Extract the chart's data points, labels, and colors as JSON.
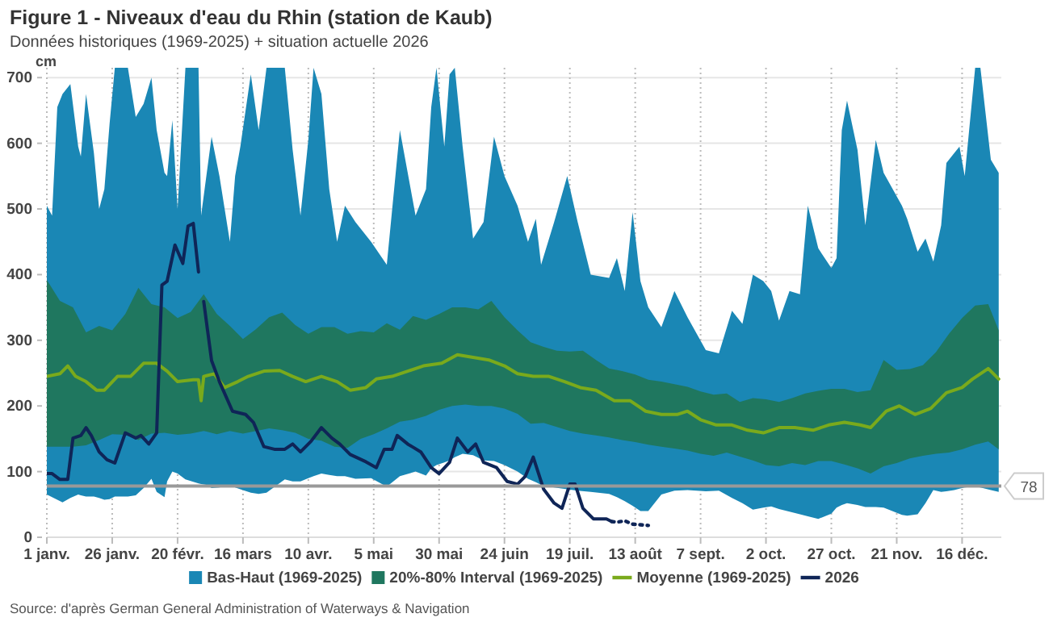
{
  "chart_data": {
    "type": "area",
    "title": "Figure 1 - Niveaux d'eau du Rhin (station de Kaub)",
    "subtitle": "Données historiques (1969-2025) + situation actuelle 2026",
    "ylabel": "cm",
    "annotations": [
      "Source: d'après German General Administration of Waterways & Navigation"
    ],
    "xlim": [
      "--01-01",
      "--12-31"
    ],
    "xticks": [
      {
        "value": "--01-01",
        "label": "1 janv."
      },
      {
        "value": "--01-26",
        "label": "26 janv."
      },
      {
        "value": "--02-20",
        "label": "20 févr."
      },
      {
        "value": "--03-16",
        "label": "16 mars"
      },
      {
        "value": "--04-10",
        "label": "10 avr."
      },
      {
        "value": "--05-05",
        "label": "5 mai"
      },
      {
        "value": "--05-30",
        "label": "30 mai"
      },
      {
        "value": "--06-24",
        "label": "24 juin"
      },
      {
        "value": "--07-19",
        "label": "19 juil."
      },
      {
        "value": "--08-13",
        "label": "13 août"
      },
      {
        "value": "--09-07",
        "label": "7 sept."
      },
      {
        "value": "--10-02",
        "label": "2 oct."
      },
      {
        "value": "--10-27",
        "label": "27 oct."
      },
      {
        "value": "--11-21",
        "label": "21 nov."
      },
      {
        "value": "--12-16",
        "label": "16 déc."
      }
    ],
    "ylim": [
      0,
      715
    ],
    "yticks": [
      0,
      100,
      200,
      300,
      400,
      500,
      600,
      700
    ],
    "grid": true,
    "legend": "bottom",
    "ref_lines": [
      {
        "axis": "y",
        "value": 78,
        "label": "78",
        "color": "#999999"
      }
    ],
    "series": [
      {
        "name": "Bas-Haut (1969-2025)",
        "color": "#1a87b5",
        "x": [
          "--01-01",
          "--01-03",
          "--01-05",
          "--01-07",
          "--01-10",
          "--01-13",
          "--01-14",
          "--01-16",
          "--01-19",
          "--01-21",
          "--01-23",
          "--01-25",
          "--01-27",
          "--02-01",
          "--02-04",
          "--02-07",
          "--02-10",
          "--02-12",
          "--02-15",
          "--02-16",
          "--02-18",
          "--02-20",
          "--02-23",
          "--02-28",
          "--02-29",
          "--03-02",
          "--03-04",
          "--03-07",
          "--03-11",
          "--03-13",
          "--03-15",
          "--03-19",
          "--03-22",
          "--03-25",
          "--04-01",
          "--04-04",
          "--04-07",
          "--04-10",
          "--04-12",
          "--04-15",
          "--04-18",
          "--04-21",
          "--04-24",
          "--04-28",
          "--05-04",
          "--05-10",
          "--05-15",
          "--05-21",
          "--05-25",
          "--05-27",
          "--05-29",
          "--06-01",
          "--06-03",
          "--06-05",
          "--06-08",
          "--06-12",
          "--06-16",
          "--06-20",
          "--06-24",
          "--06-29",
          "--07-03",
          "--07-06",
          "--07-08",
          "--07-13",
          "--07-18",
          "--07-22",
          "--07-27",
          "--08-03",
          "--08-06",
          "--08-09",
          "--08-12",
          "--08-15",
          "--08-18",
          "--08-23",
          "--08-28",
          "--09-02",
          "--09-09",
          "--09-14",
          "--09-19",
          "--09-23",
          "--09-27",
          "--10-01",
          "--10-04",
          "--10-07",
          "--10-11",
          "--10-15",
          "--10-18",
          "--10-22",
          "--10-27",
          "--10-29",
          "--10-31",
          "--11-02",
          "--11-06",
          "--11-09",
          "--11-13",
          "--11-16",
          "--11-23",
          "--11-25",
          "--11-29",
          "--12-02",
          "--12-05",
          "--12-08",
          "--12-10",
          "--12-13",
          "--12-15",
          "--12-17",
          "--12-21",
          "--12-23",
          "--12-27",
          "--12-30"
        ],
        "values": [
          null,
          null,
          null,
          null,
          null,
          null,
          null,
          null,
          null,
          null,
          null,
          null,
          null,
          null,
          null,
          null,
          null,
          null,
          null,
          null,
          null,
          null,
          null,
          null,
          null,
          null,
          null,
          null,
          null,
          null,
          null,
          null,
          null,
          null,
          null,
          null,
          null,
          null,
          null,
          null,
          null,
          null,
          null,
          null,
          null,
          null,
          null,
          null,
          null,
          null,
          null,
          null,
          null,
          null,
          null,
          null,
          null,
          null,
          null,
          null,
          null,
          null,
          null,
          null,
          null,
          null,
          null,
          null,
          null,
          null,
          null,
          null,
          null,
          null,
          null,
          null,
          null,
          null,
          null,
          null,
          null,
          null,
          null,
          null,
          null,
          null,
          null,
          null,
          null,
          null,
          null,
          null,
          null,
          null,
          null,
          null,
          null,
          null,
          null,
          null,
          null,
          null,
          null,
          null,
          null,
          null,
          null,
          null,
          null,
          null
        ],
        "upper": [
          505,
          490,
          655,
          675,
          690,
          595,
          580,
          675,
          585,
          500,
          530,
          630,
          715,
          715,
          640,
          660,
          700,
          620,
          555,
          550,
          635,
          500,
          715,
          715,
          490,
          550,
          610,
          550,
          450,
          550,
          595,
          705,
          620,
          715,
          715,
          590,
          490,
          605,
          715,
          675,
          530,
          450,
          505,
          480,
          450,
          415,
          620,
          490,
          530,
          655,
          715,
          595,
          705,
          715,
          595,
          455,
          480,
          610,
          550,
          505,
          450,
          485,
          415,
          480,
          550,
          480,
          400,
          395,
          425,
          375,
          495,
          390,
          350,
          320,
          375,
          335,
          285,
          280,
          345,
          325,
          400,
          390,
          375,
          330,
          375,
          370,
          505,
          440,
          410,
          425,
          620,
          665,
          590,
          475,
          605,
          555,
          505,
          485,
          435,
          455,
          420,
          475,
          570,
          585,
          595,
          550,
          715,
          715,
          575,
          555
        ],
        "lower": [
          65,
          61,
          57,
          53,
          60,
          65,
          64,
          62,
          62,
          60,
          57,
          58,
          62,
          62,
          64,
          75,
          89,
          69,
          61,
          85,
          100,
          97,
          88,
          82,
          81,
          80,
          75,
          76,
          80,
          76,
          73,
          68,
          66,
          68,
          88,
          85,
          85,
          90,
          93,
          97,
          95,
          93,
          93,
          89,
          90,
          77,
          93,
          100,
          94,
          105,
          110,
          114,
          117,
          122,
          127,
          125,
          117,
          116,
          110,
          100,
          89,
          84,
          80,
          76,
          73,
          71,
          69,
          66,
          61,
          55,
          48,
          40,
          40,
          65,
          71,
          72,
          70,
          71,
          60,
          52,
          42,
          45,
          47,
          43,
          39,
          35,
          32,
          28,
          36,
          45,
          49,
          52,
          49,
          46,
          46,
          45,
          34,
          33,
          35,
          52,
          72,
          69,
          70,
          72,
          74,
          76,
          77,
          76,
          72,
          69
        ]
      },
      {
        "name": "20%-80% Interval (1969-2025)",
        "color": "#1f775f",
        "x": [
          "--01-01",
          "--01-06",
          "--01-11",
          "--01-16",
          "--01-21",
          "--01-26",
          "--01-31",
          "--02-05",
          "--02-10",
          "--02-15",
          "--02-20",
          "--02-25",
          "--03-01",
          "--03-06",
          "--03-11",
          "--03-16",
          "--03-21",
          "--03-26",
          "--03-31",
          "--04-05",
          "--04-10",
          "--04-15",
          "--04-20",
          "--04-25",
          "--04-30",
          "--05-05",
          "--05-10",
          "--05-15",
          "--05-20",
          "--05-25",
          "--05-30",
          "--06-04",
          "--06-09",
          "--06-14",
          "--06-19",
          "--06-24",
          "--06-29",
          "--07-04",
          "--07-09",
          "--07-14",
          "--07-19",
          "--07-24",
          "--07-29",
          "--08-03",
          "--08-08",
          "--08-13",
          "--08-18",
          "--08-23",
          "--08-28",
          "--09-02",
          "--09-07",
          "--09-12",
          "--09-17",
          "--09-22",
          "--09-27",
          "--10-02",
          "--10-07",
          "--10-12",
          "--10-17",
          "--10-22",
          "--10-27",
          "--11-01",
          "--11-06",
          "--11-11",
          "--11-16",
          "--11-21",
          "--11-26",
          "--12-01",
          "--12-06",
          "--12-11",
          "--12-16",
          "--12-21",
          "--12-26",
          "--12-30"
        ],
        "values": [
          null,
          null,
          null,
          null,
          null,
          null,
          null,
          null,
          null,
          null,
          null,
          null,
          null,
          null,
          null,
          null,
          null,
          null,
          null,
          null,
          null,
          null,
          null,
          null,
          null,
          null,
          null,
          null,
          null,
          null,
          null,
          null,
          null,
          null,
          null,
          null,
          null,
          null,
          null,
          null,
          null,
          null,
          null,
          null,
          null,
          null,
          null,
          null,
          null,
          null,
          null,
          null,
          null,
          null,
          null,
          null,
          null,
          null,
          null,
          null,
          null,
          null,
          null,
          null,
          null,
          null,
          null,
          null,
          null,
          null,
          null,
          null,
          null,
          null
        ],
        "upper": [
          392,
          360,
          350,
          312,
          322,
          315,
          340,
          380,
          355,
          350,
          334,
          343,
          370,
          340,
          322,
          302,
          317,
          335,
          342,
          323,
          310,
          320,
          320,
          310,
          314,
          312,
          326,
          316,
          337,
          331,
          340,
          350,
          350,
          347,
          360,
          335,
          315,
          297,
          290,
          284,
          283,
          284,
          270,
          257,
          253,
          248,
          240,
          237,
          233,
          229,
          222,
          217,
          219,
          206,
          212,
          210,
          206,
          212,
          219,
          223,
          226,
          226,
          221,
          224,
          270,
          255,
          256,
          262,
          282,
          310,
          334,
          353,
          355,
          315
        ],
        "lower": [
          138,
          138,
          138,
          140,
          148,
          157,
          156,
          148,
          158,
          159,
          156,
          158,
          162,
          157,
          162,
          158,
          162,
          166,
          163,
          159,
          150,
          147,
          138,
          136,
          150,
          157,
          166,
          176,
          179,
          185,
          194,
          200,
          202,
          200,
          200,
          196,
          188,
          173,
          174,
          168,
          162,
          158,
          155,
          152,
          148,
          145,
          141,
          138,
          135,
          132,
          127,
          124,
          129,
          123,
          117,
          110,
          108,
          113,
          110,
          116,
          116,
          111,
          105,
          97,
          108,
          113,
          120,
          124,
          127,
          129,
          134,
          141,
          146,
          134
        ]
      },
      {
        "name": "Moyenne (1969-2025)",
        "type": "line",
        "color": "#7aaa1c",
        "x": [
          "--01-01",
          "--01-06",
          "--01-09",
          "--01-12",
          "--01-16",
          "--01-20",
          "--01-23",
          "--01-28",
          "--02-02",
          "--02-07",
          "--02-12",
          "--02-16",
          "--02-20",
          "--02-26",
          "--02-28",
          "--02-29",
          "--03-01",
          "--03-05",
          "--03-09",
          "--03-14",
          "--03-18",
          "--03-24",
          "--03-30",
          "--04-04",
          "--04-09",
          "--04-15",
          "--04-21",
          "--04-26",
          "--05-02",
          "--05-06",
          "--05-12",
          "--05-18",
          "--05-24",
          "--05-31",
          "--06-06",
          "--06-12",
          "--06-18",
          "--06-24",
          "--06-29",
          "--07-05",
          "--07-11",
          "--07-17",
          "--07-23",
          "--07-29",
          "--08-05",
          "--08-11",
          "--08-17",
          "--08-23",
          "--08-29",
          "--09-02",
          "--09-07",
          "--09-13",
          "--09-19",
          "--09-25",
          "--10-01",
          "--10-07",
          "--10-13",
          "--10-20",
          "--10-26",
          "--11-01",
          "--11-07",
          "--11-11",
          "--11-17",
          "--11-22",
          "--11-28",
          "--12-04",
          "--12-10",
          "--12-16",
          "--12-20",
          "--12-26",
          "--12-30"
        ],
        "values": [
          245,
          249,
          261,
          245,
          237,
          224,
          224,
          245,
          245,
          265,
          265,
          253,
          237,
          240,
          240,
          208,
          245,
          249,
          228,
          237,
          245,
          253,
          254,
          245,
          237,
          245,
          237,
          224,
          228,
          241,
          245,
          253,
          261,
          265,
          278,
          274,
          270,
          261,
          249,
          245,
          245,
          237,
          228,
          224,
          208,
          208,
          192,
          187,
          187,
          192,
          179,
          171,
          171,
          163,
          159,
          167,
          167,
          163,
          171,
          175,
          171,
          167,
          192,
          200,
          187,
          196,
          220,
          228,
          241,
          257,
          241
        ]
      },
      {
        "name": "2026",
        "type": "line",
        "color": "#0f2557",
        "x": [
          "--01-01",
          "--01-03",
          "--01-06",
          "--01-09",
          "--01-11",
          "--01-14",
          "--01-16",
          "--01-18",
          "--01-21",
          "--01-24",
          "--01-27",
          "--01-31",
          "--02-04",
          "--02-06",
          "--02-09",
          "--02-12",
          "--02-14",
          "--02-16",
          "--02-19",
          "--02-22",
          "--02-24",
          "--02-26",
          "--02-28",
          "--02-29",
          "--03-01",
          "--03-04",
          "--03-07",
          "--03-12",
          "--03-17",
          "--03-20",
          "--03-24",
          "--03-28",
          "--04-01",
          "--04-04",
          "--04-07",
          "--04-11",
          "--04-15",
          "--04-19",
          "--04-22",
          "--04-26",
          "--05-02",
          "--05-06",
          "--05-09",
          "--05-12",
          "--05-14",
          "--05-18",
          "--05-23",
          "--05-27",
          "--05-30",
          "--06-03",
          "--06-06",
          "--06-10",
          "--06-13",
          "--06-16",
          "--06-21",
          "--06-25",
          "--06-29",
          "--07-02",
          "--07-05",
          "--07-09",
          "--07-13",
          "--07-16",
          "--07-19",
          "--07-21",
          "--07-24",
          "--07-28",
          "--08-02",
          "--08-04"
        ],
        "values": [
          97,
          97,
          88,
          88,
          151,
          155,
          167,
          155,
          130,
          118,
          113,
          159,
          151,
          155,
          142,
          159,
          384,
          390,
          445,
          417,
          474,
          478,
          404,
          null,
          359,
          269,
          237,
          192,
          187,
          175,
          138,
          134,
          134,
          142,
          130,
          146,
          167,
          151,
          142,
          126,
          115,
          106,
          134,
          134,
          155,
          142,
          130,
          106,
          97,
          114,
          151,
          130,
          142,
          114,
          106,
          85,
          81,
          93,
          122,
          73,
          52,
          44,
          81,
          81,
          44,
          28,
          28,
          24
        ]
      },
      {
        "type": "line",
        "color": "#0f2557",
        "line_style": "dotted",
        "x": [
          "--08-04",
          "--08-06",
          "--08-09",
          "--08-12",
          "--08-15",
          "--08-18"
        ],
        "values": [
          24,
          23,
          25,
          20,
          19,
          18
        ]
      }
    ]
  }
}
